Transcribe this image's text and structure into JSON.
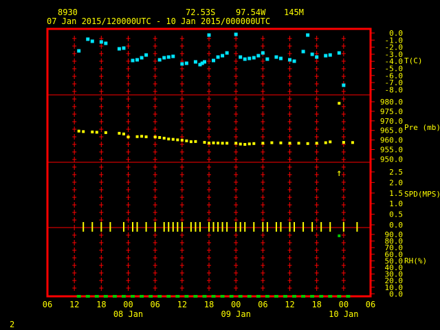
{
  "header": {
    "station": "8930",
    "lat": "72.53S",
    "lon": "97.54W",
    "elev": "145M",
    "range": "07 Jan 2015/120000UTC - 10 Jan 2015/000000UTC"
  },
  "footer": {
    "page": "2"
  },
  "colors": {
    "frame": "#ff0000",
    "axis": "#ffff00",
    "temperature": "#00e5ff",
    "pressure": "#ffff00",
    "wind": "#ffff00",
    "humidity": "#00c800",
    "grid": "#ff0000"
  },
  "chart_data": {
    "type": "scatter",
    "x_axis": {
      "units": "hours since 07 Jan 2015 00 UTC",
      "range": [
        6,
        78
      ],
      "tick_values": [
        6,
        12,
        18,
        24,
        30,
        36,
        42,
        48,
        54,
        60,
        66,
        72,
        78
      ],
      "tick_labels": [
        "06",
        "12",
        "18",
        "00",
        "06",
        "12",
        "18",
        "00",
        "06",
        "12",
        "18",
        "00",
        "06"
      ],
      "day_labels": [
        {
          "x": 24,
          "label": "08 Jan"
        },
        {
          "x": 48,
          "label": "09 Jan"
        },
        {
          "x": 72,
          "label": "10 Jan"
        }
      ]
    },
    "panels": [
      {
        "key": "temperature",
        "label": "T(C)",
        "ylim": [
          -9.0,
          0.0
        ],
        "ticks": [
          "0.0",
          "-1.0",
          "-2.0",
          "-3.0",
          "-4.0",
          "-5.0",
          "-6.0",
          "-7.0",
          "-8.0"
        ],
        "x": [
          13,
          15,
          16,
          18,
          19,
          22,
          23,
          25,
          26,
          27,
          28,
          31,
          32,
          33,
          34,
          36,
          37,
          39,
          40,
          40.5,
          41,
          42,
          43,
          44,
          45,
          46,
          48,
          49,
          50,
          51,
          52,
          53,
          54,
          55,
          57,
          58,
          60,
          61,
          63,
          64,
          65,
          66,
          68,
          69,
          71,
          72
        ],
        "values": [
          -2.6,
          -0.9,
          -1.2,
          -1.3,
          -1.5,
          -2.3,
          -2.2,
          -4.0,
          -3.9,
          -3.6,
          -3.2,
          -3.9,
          -3.6,
          -3.5,
          -3.4,
          -4.5,
          -4.4,
          -4.2,
          -4.6,
          -4.4,
          -4.2,
          -0.3,
          -4.0,
          -3.5,
          -3.3,
          -2.9,
          -0.2,
          -3.5,
          -3.8,
          -3.7,
          -3.6,
          -3.3,
          -2.9,
          -3.8,
          -3.5,
          -3.7,
          -3.9,
          -4.1,
          -2.7,
          -0.3,
          -3.1,
          -3.5,
          -3.3,
          -3.2,
          -2.9,
          -7.6
        ]
      },
      {
        "key": "pressure",
        "label": "Pre (mb)",
        "ylim": [
          945,
          985
        ],
        "ticks": [
          "980.0",
          "975.0",
          "970.0",
          "965.0",
          "960.0",
          "955.0",
          "950.0"
        ],
        "x": [
          13,
          14,
          16,
          17,
          19,
          22,
          23,
          24,
          26,
          27,
          28,
          30,
          31,
          32,
          33,
          34,
          35,
          36,
          37,
          38,
          39,
          41,
          42,
          43,
          44,
          45,
          46,
          48,
          49,
          50,
          51,
          52,
          54,
          56,
          58,
          60,
          62,
          64,
          66,
          68,
          69,
          72,
          74
        ],
        "values": [
          963.5,
          963.2,
          963.0,
          962.8,
          962.6,
          962.2,
          961.8,
          960.0,
          960.2,
          960.4,
          960.1,
          960.0,
          959.7,
          959.3,
          958.8,
          958.6,
          958.3,
          958.1,
          957.7,
          957.2,
          957.3,
          956.8,
          956.4,
          956.5,
          956.4,
          956.3,
          956.3,
          956.3,
          955.8,
          955.6,
          955.9,
          956.1,
          956.3,
          956.6,
          956.5,
          956.3,
          956.3,
          956.1,
          956.3,
          956.6,
          957.1,
          956.8,
          956.7
        ]
      },
      {
        "key": "wind",
        "label": "SPD(MPS)",
        "ylim": [
          0,
          3
        ],
        "ticks": [
          "2.5",
          "2.0",
          "1.5",
          "1.0",
          "0.5",
          "0.0"
        ],
        "x": [
          14,
          16,
          18,
          20,
          23,
          25,
          26,
          28,
          30,
          32,
          33,
          34,
          35,
          36,
          38,
          39,
          40,
          42,
          43,
          44,
          45,
          46,
          48,
          49,
          50,
          52,
          54,
          55,
          57,
          58,
          60,
          61,
          63,
          65,
          67,
          69,
          72,
          75
        ],
        "values": [
          0,
          0,
          0,
          0,
          0,
          0,
          0,
          0,
          0,
          0,
          0,
          0,
          0,
          0,
          0,
          0,
          0,
          0,
          0,
          0,
          0,
          0,
          0,
          0,
          0,
          0,
          0,
          0,
          0,
          0,
          0,
          0,
          0,
          0,
          0,
          0,
          0,
          0
        ],
        "annotation": {
          "x": 71,
          "symbol": "↑"
        }
      },
      {
        "key": "humidity",
        "label": "RH(%)",
        "ylim": [
          0,
          100
        ],
        "ticks": [
          "90.0",
          "80.0",
          "70.0",
          "60.0",
          "50.0",
          "40.0",
          "30.0",
          "20.0",
          "10.0",
          "0.0"
        ],
        "x": [
          13,
          15,
          17,
          19,
          21,
          23,
          25,
          27,
          29,
          31,
          33,
          35,
          37,
          39,
          41,
          43,
          45,
          47,
          49,
          51,
          53,
          55,
          57,
          59,
          61,
          63,
          65,
          67,
          69,
          71,
          73
        ],
        "values": [
          0,
          0,
          0,
          0,
          0,
          0,
          0,
          0,
          0,
          0,
          0,
          0,
          0,
          0,
          0,
          0,
          0,
          0,
          0,
          0,
          0,
          0,
          0,
          0,
          0,
          0,
          0,
          0,
          0,
          0,
          0
        ],
        "outlier": {
          "x": 71,
          "value": 88
        }
      }
    ]
  }
}
